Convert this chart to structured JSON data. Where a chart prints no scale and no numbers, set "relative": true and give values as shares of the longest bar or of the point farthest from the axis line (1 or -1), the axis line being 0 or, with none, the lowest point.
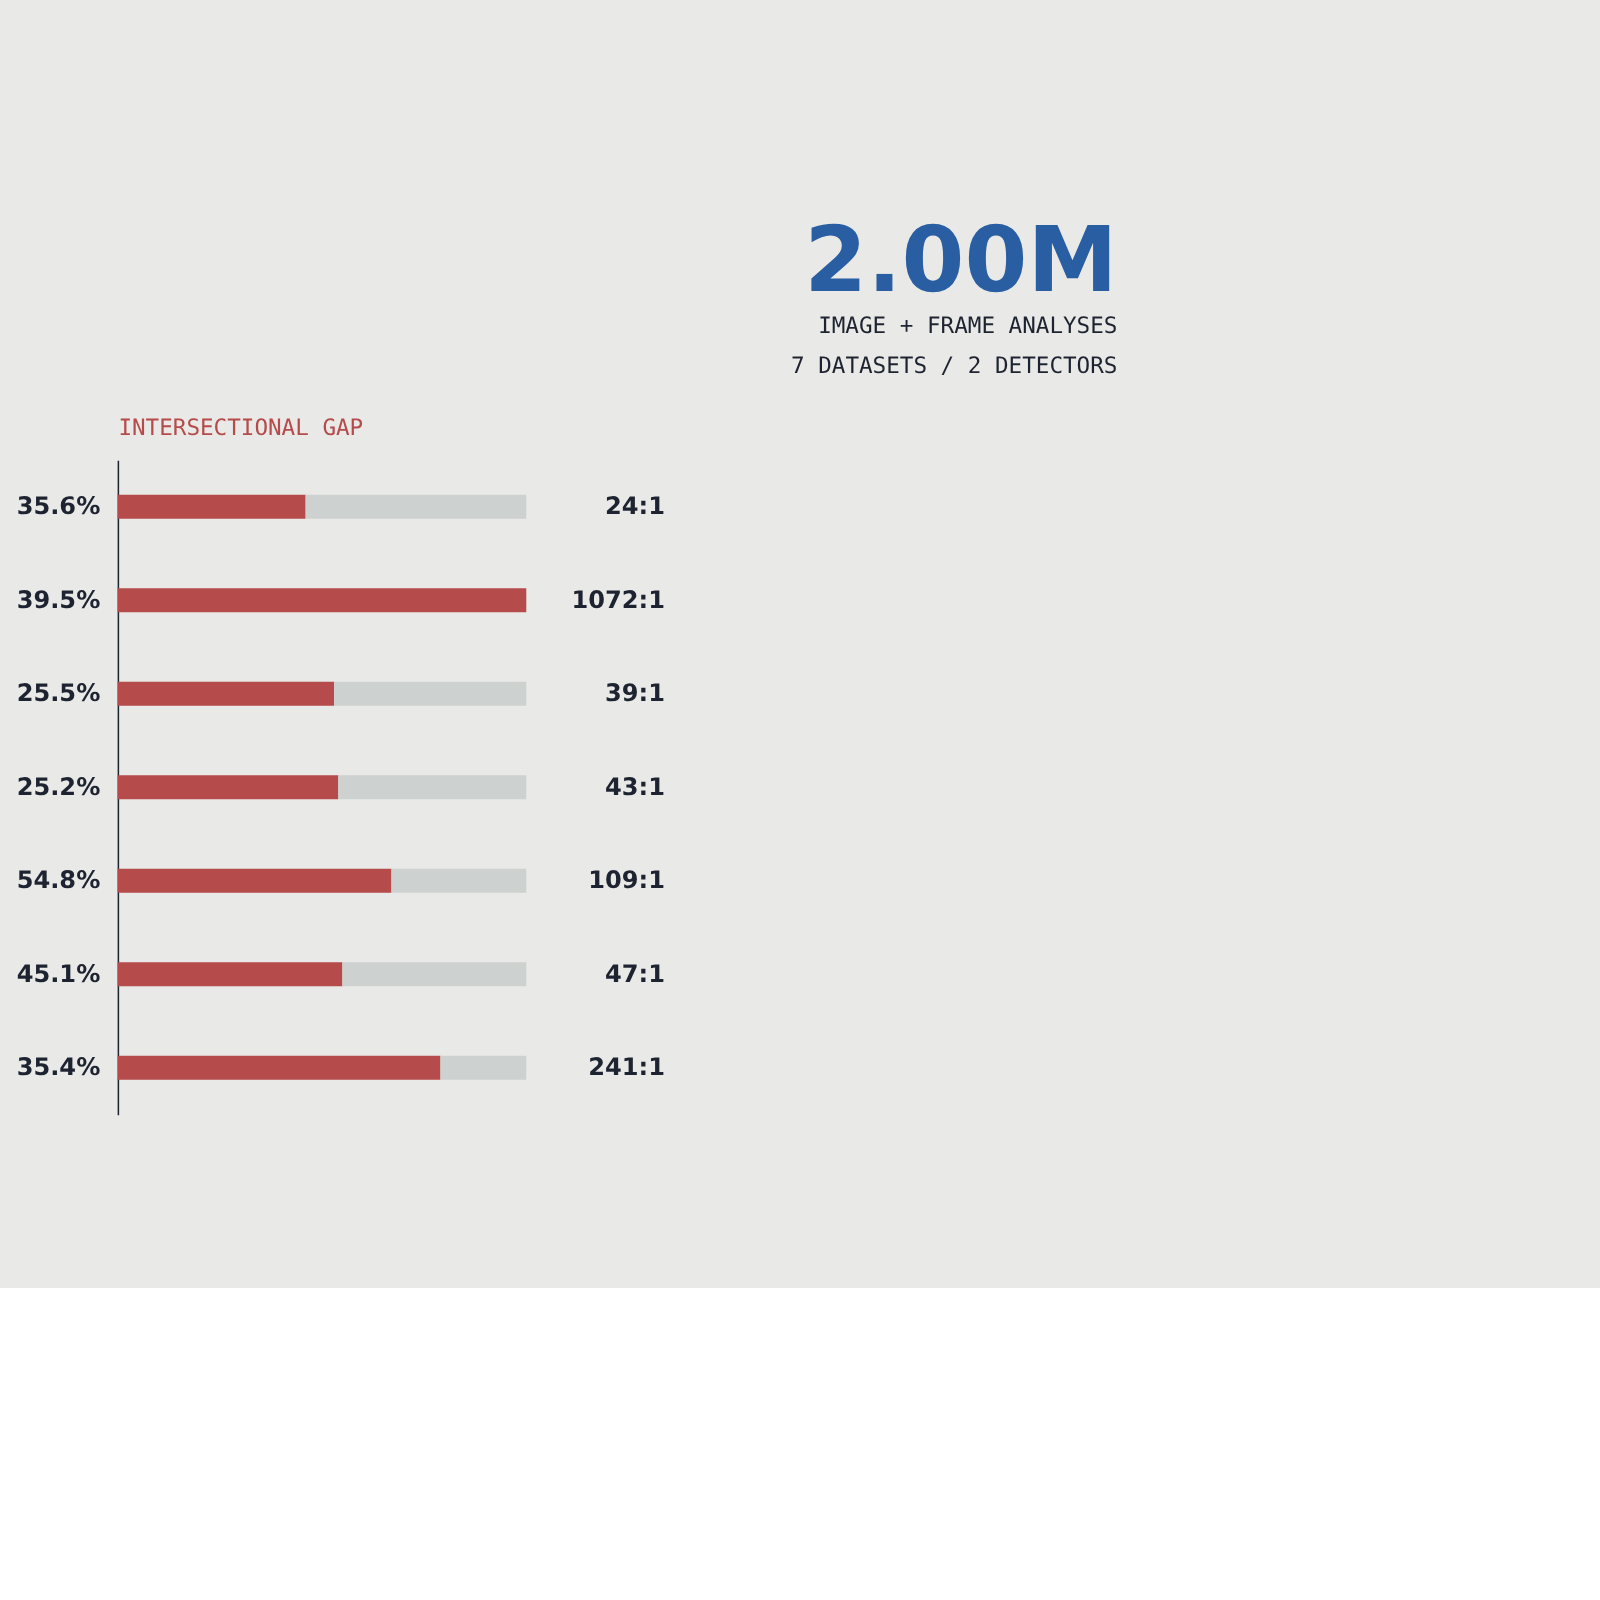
{
  "chart_data": {
    "type": "bar",
    "orientation": "horizontal",
    "stacked": true,
    "relative": true,
    "title": "2.00M",
    "subtitle": "IMAGE + FRAME ANALYSES",
    "annotations": [
      "7 DATASETS / 2 DETECTORS"
    ],
    "xlabel": "INTERSECTIONAL GAP",
    "categories": [
      "35.6%",
      "39.5%",
      "25.5%",
      "25.2%",
      "54.8%",
      "45.1%",
      "35.4%"
    ],
    "series": [
      {
        "color": "#b54b4a",
        "values": [
          0.46,
          1.0,
          0.53,
          0.54,
          0.67,
          0.55,
          0.79
        ]
      },
      {
        "color": "#cdd1d0",
        "values": [
          0.54,
          0.0,
          0.47,
          0.46,
          0.33,
          0.45,
          0.21
        ]
      }
    ],
    "value_labels": [
      "24:1",
      "1072:1",
      "39:1",
      "43:1",
      "109:1",
      "47:1",
      "241:1"
    ],
    "grid": false,
    "legend": false
  }
}
